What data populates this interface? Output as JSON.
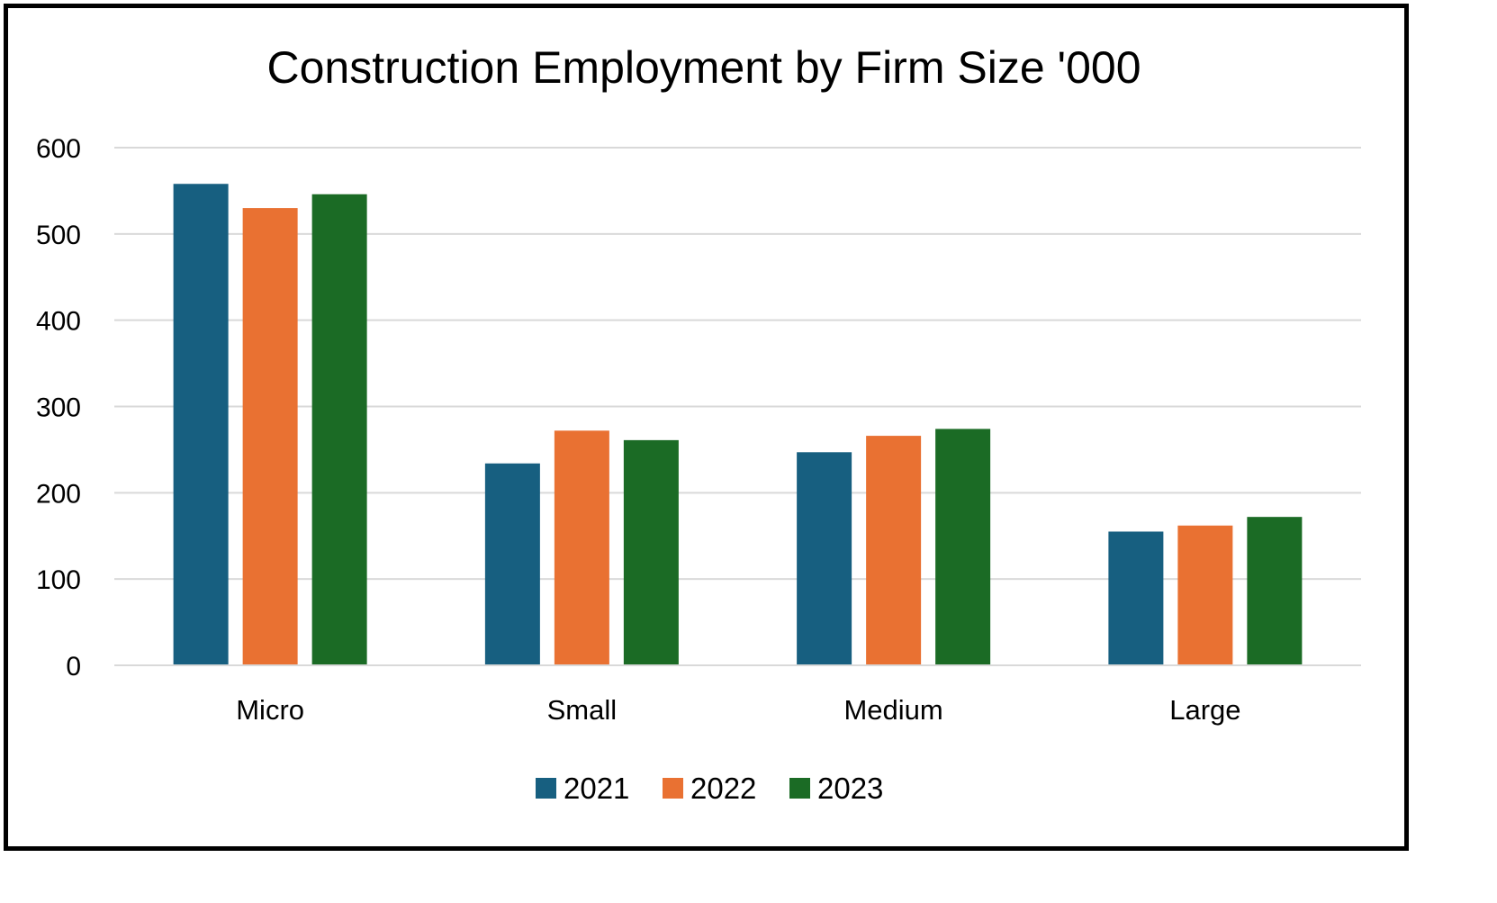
{
  "chart_data": {
    "type": "bar",
    "title": "Construction Employment by Firm Size '000",
    "xlabel": "",
    "ylabel": "",
    "categories": [
      "Micro",
      "Small",
      "Medium",
      "Large"
    ],
    "series": [
      {
        "name": "2021",
        "color": "#175F80",
        "values": [
          558,
          234,
          247,
          155
        ]
      },
      {
        "name": "2022",
        "color": "#E97132",
        "values": [
          530,
          272,
          266,
          162
        ]
      },
      {
        "name": "2023",
        "color": "#1B6B25",
        "values": [
          546,
          261,
          274,
          172
        ]
      }
    ],
    "ylim": [
      0,
      600
    ],
    "yticks": [
      "0",
      "100",
      "200",
      "300",
      "400",
      "500",
      "600"
    ],
    "grid": true,
    "gridline_color": "#D9D9D9",
    "legend_position": "bottom"
  }
}
